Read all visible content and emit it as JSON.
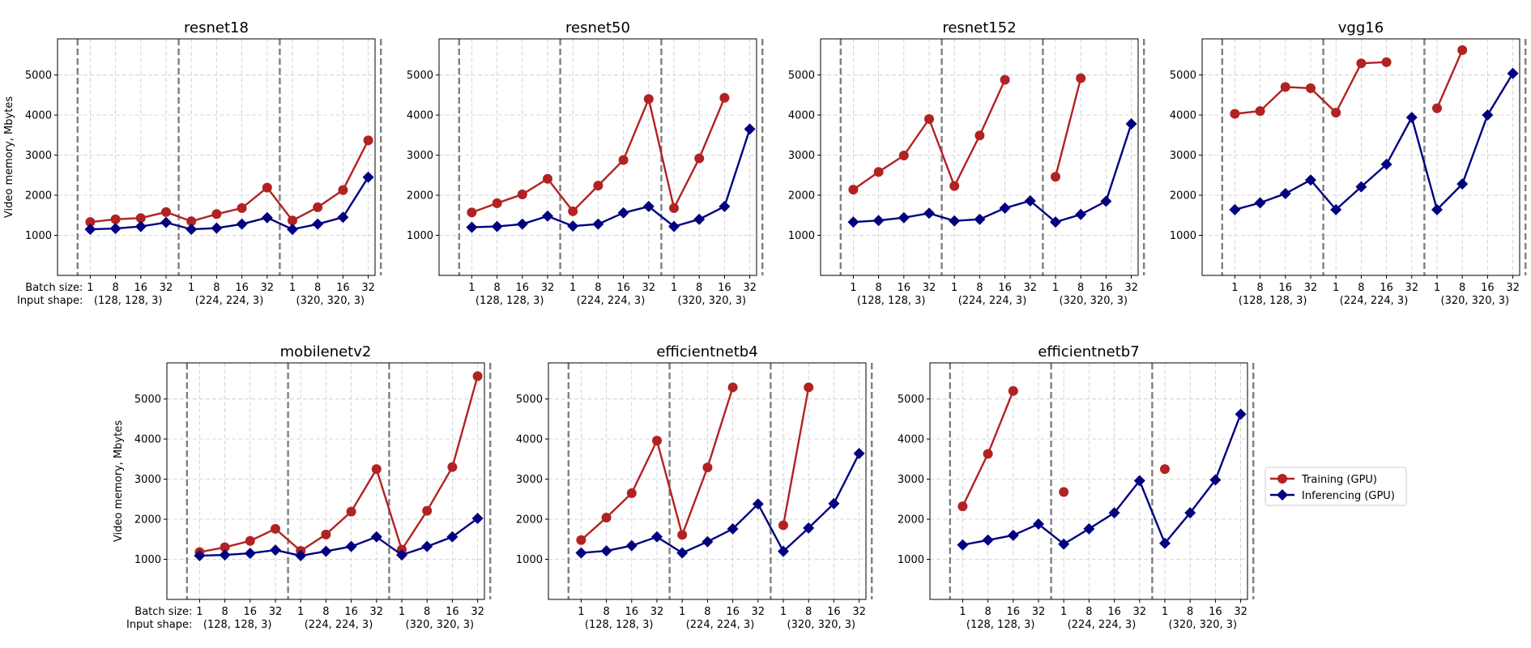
{
  "figure": {
    "ylabel": "Video memory, Mbytes",
    "batch_label": "Batch size:",
    "shape_label": "Input shape:",
    "legend": {
      "training": "Training (GPU)",
      "inferencing": "Inferencing (GPU)"
    },
    "colors": {
      "training": "#b22222",
      "inferencing": "#000080",
      "separator": "#808080",
      "grid": "#cccccc"
    }
  },
  "chart_data": [
    {
      "type": "line",
      "title": "resnet18",
      "categories": [
        "1",
        "8",
        "16",
        "32",
        "1",
        "8",
        "16",
        "32",
        "1",
        "8",
        "16",
        "32"
      ],
      "groups": [
        "(128, 128, 3)",
        "(224, 224, 3)",
        "(320, 320, 3)"
      ],
      "ylim": [
        0,
        5900
      ],
      "yticks": [
        1000,
        2000,
        3000,
        4000,
        5000
      ],
      "grid": true,
      "series": [
        {
          "name": "Training (GPU)",
          "values": [
            1330,
            1400,
            1430,
            1580,
            1350,
            1530,
            1680,
            2190,
            1370,
            1700,
            2130,
            3370
          ]
        },
        {
          "name": "Inferencing (GPU)",
          "values": [
            1150,
            1170,
            1220,
            1320,
            1150,
            1180,
            1280,
            1440,
            1150,
            1280,
            1450,
            2450
          ]
        }
      ]
    },
    {
      "type": "line",
      "title": "resnet50",
      "categories": [
        "1",
        "8",
        "16",
        "32",
        "1",
        "8",
        "16",
        "32",
        "1",
        "8",
        "16",
        "32"
      ],
      "groups": [
        "(128, 128, 3)",
        "(224, 224, 3)",
        "(320, 320, 3)"
      ],
      "ylim": [
        0,
        5900
      ],
      "yticks": [
        1000,
        2000,
        3000,
        4000,
        5000
      ],
      "grid": true,
      "series": [
        {
          "name": "Training (GPU)",
          "values": [
            1570,
            1800,
            2020,
            2410,
            1600,
            2240,
            2880,
            4400,
            1680,
            2920,
            4430,
            null
          ]
        },
        {
          "name": "Inferencing (GPU)",
          "values": [
            1200,
            1220,
            1280,
            1480,
            1230,
            1280,
            1560,
            1720,
            1220,
            1400,
            1720,
            3650
          ]
        }
      ]
    },
    {
      "type": "line",
      "title": "resnet152",
      "categories": [
        "1",
        "8",
        "16",
        "32",
        "1",
        "8",
        "16",
        "32",
        "1",
        "8",
        "16",
        "32"
      ],
      "groups": [
        "(128, 128, 3)",
        "(224, 224, 3)",
        "(320, 320, 3)"
      ],
      "ylim": [
        0,
        5900
      ],
      "yticks": [
        1000,
        2000,
        3000,
        4000,
        5000
      ],
      "grid": true,
      "series": [
        {
          "name": "Training (GPU)",
          "values": [
            2140,
            2580,
            2990,
            3900,
            2230,
            3490,
            4880,
            null,
            2460,
            4920,
            null,
            null
          ]
        },
        {
          "name": "Inferencing (GPU)",
          "values": [
            1330,
            1370,
            1440,
            1550,
            1360,
            1400,
            1680,
            1860,
            1330,
            1520,
            1850,
            3780
          ]
        }
      ]
    },
    {
      "type": "line",
      "title": "vgg16",
      "categories": [
        "1",
        "8",
        "16",
        "32",
        "1",
        "8",
        "16",
        "32",
        "1",
        "8",
        "16",
        "32"
      ],
      "groups": [
        "(128, 128, 3)",
        "(224, 224, 3)",
        "(320, 320, 3)"
      ],
      "ylim": [
        0,
        5900
      ],
      "yticks": [
        1000,
        2000,
        3000,
        4000,
        5000
      ],
      "grid": true,
      "series": [
        {
          "name": "Training (GPU)",
          "values": [
            4030,
            4100,
            4700,
            4670,
            4060,
            5290,
            5320,
            null,
            4170,
            5620,
            null,
            null
          ]
        },
        {
          "name": "Inferencing (GPU)",
          "values": [
            1640,
            1810,
            2040,
            2380,
            1640,
            2210,
            2770,
            3940,
            1640,
            2280,
            4000,
            5040
          ]
        }
      ]
    },
    {
      "type": "line",
      "title": "mobilenetv2",
      "categories": [
        "1",
        "8",
        "16",
        "32",
        "1",
        "8",
        "16",
        "32",
        "1",
        "8",
        "16",
        "32"
      ],
      "groups": [
        "(128, 128, 3)",
        "(224, 224, 3)",
        "(320, 320, 3)"
      ],
      "ylim": [
        0,
        5900
      ],
      "yticks": [
        1000,
        2000,
        3000,
        4000,
        5000
      ],
      "grid": true,
      "series": [
        {
          "name": "Training (GPU)",
          "values": [
            1180,
            1300,
            1460,
            1760,
            1210,
            1620,
            2190,
            3250,
            1240,
            2210,
            3300,
            5570
          ]
        },
        {
          "name": "Inferencing (GPU)",
          "values": [
            1090,
            1110,
            1150,
            1230,
            1090,
            1200,
            1320,
            1560,
            1110,
            1320,
            1560,
            2020
          ]
        }
      ]
    },
    {
      "type": "line",
      "title": "efficientnetb4",
      "categories": [
        "1",
        "8",
        "16",
        "32",
        "1",
        "8",
        "16",
        "32",
        "1",
        "8",
        "16",
        "32"
      ],
      "groups": [
        "(128, 128, 3)",
        "(224, 224, 3)",
        "(320, 320, 3)"
      ],
      "ylim": [
        0,
        5900
      ],
      "yticks": [
        1000,
        2000,
        3000,
        4000,
        5000
      ],
      "grid": true,
      "series": [
        {
          "name": "Training (GPU)",
          "values": [
            1480,
            2040,
            2650,
            3960,
            1610,
            3290,
            5290,
            null,
            1850,
            5290,
            null,
            null
          ]
        },
        {
          "name": "Inferencing (GPU)",
          "values": [
            1160,
            1210,
            1340,
            1560,
            1160,
            1440,
            1760,
            2380,
            1200,
            1780,
            2390,
            3640
          ]
        }
      ]
    },
    {
      "type": "line",
      "title": "efficientnetb7",
      "categories": [
        "1",
        "8",
        "16",
        "32",
        "1",
        "8",
        "16",
        "32",
        "1",
        "8",
        "16",
        "32"
      ],
      "groups": [
        "(128, 128, 3)",
        "(224, 224, 3)",
        "(320, 320, 3)"
      ],
      "ylim": [
        0,
        5900
      ],
      "yticks": [
        1000,
        2000,
        3000,
        4000,
        5000
      ],
      "grid": true,
      "series": [
        {
          "name": "Training (GPU)",
          "values": [
            2320,
            3630,
            5200,
            null,
            2680,
            null,
            null,
            null,
            3250,
            null,
            null,
            null
          ]
        },
        {
          "name": "Inferencing (GPU)",
          "values": [
            1360,
            1480,
            1600,
            1880,
            1380,
            1760,
            2160,
            2960,
            1400,
            2160,
            2980,
            4620
          ]
        }
      ]
    }
  ]
}
